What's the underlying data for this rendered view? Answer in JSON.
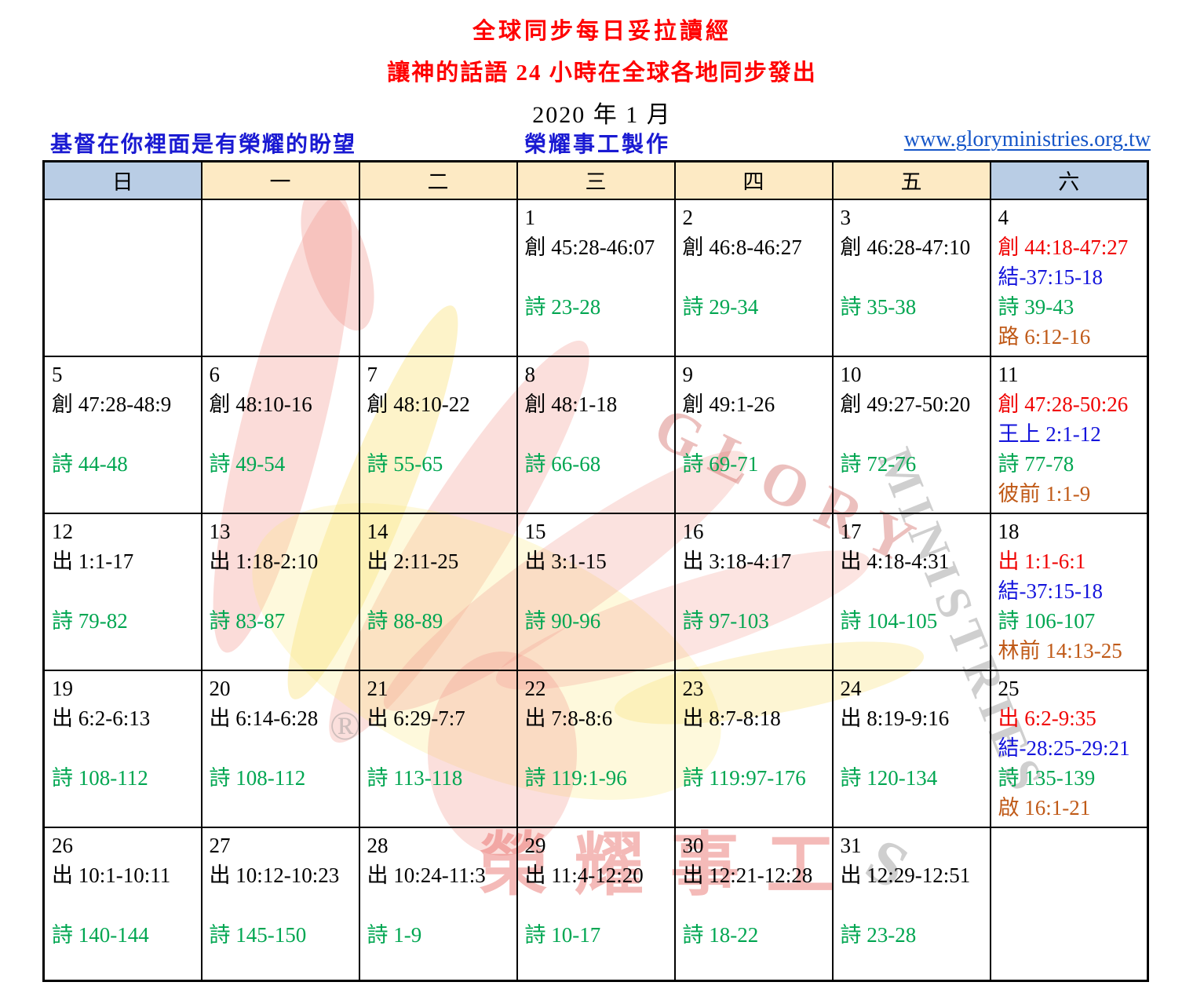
{
  "header": {
    "title": "全球同步每日妥拉讀經",
    "subtitle": "讓神的話語 24 小時在全球各地同步發出",
    "month": "2020 年 1 月",
    "slogan_left": "基督在你裡面是有榮耀的盼望",
    "slogan_center": "榮耀事工製作",
    "website": "www.gloryministries.org.tw"
  },
  "palette": {
    "title_red": "#ff0000",
    "slogan_blue": "#1a1ad2",
    "link_blue": "#1656c8",
    "header_weekend_bg": "#b9cde5",
    "header_weekday_bg": "#fdeac4",
    "grid_black": "#000000",
    "black": "#000000",
    "red": "#f00000",
    "blue": "#1414dc",
    "green": "#00a651",
    "orange": "#c05a18"
  },
  "watermark": {
    "glory": "GLORY",
    "ministries": "MINISTRIES",
    "extra_s": "S",
    "registered": "®",
    "brand_cn": "榮耀事工"
  },
  "weekdays": [
    {
      "label": "日",
      "weekend": true
    },
    {
      "label": "一",
      "weekend": false
    },
    {
      "label": "二",
      "weekend": false
    },
    {
      "label": "三",
      "weekend": false
    },
    {
      "label": "四",
      "weekend": false
    },
    {
      "label": "五",
      "weekend": false
    },
    {
      "label": "六",
      "weekend": true
    }
  ],
  "calendar": {
    "rows": [
      [
        {
          "day": "",
          "readings": []
        },
        {
          "day": "",
          "readings": []
        },
        {
          "day": "",
          "readings": []
        },
        {
          "day": "1",
          "readings": [
            {
              "slot": 1,
              "color": "black",
              "text": "創 45:28-46:07"
            },
            {
              "slot": 3,
              "color": "green",
              "text": "詩  23-28"
            }
          ]
        },
        {
          "day": "2",
          "readings": [
            {
              "slot": 1,
              "color": "black",
              "text": "創 46:8-46:27"
            },
            {
              "slot": 3,
              "color": "green",
              "text": "詩  29-34"
            }
          ]
        },
        {
          "day": "3",
          "readings": [
            {
              "slot": 1,
              "color": "black",
              "text": "創 46:28-47:10"
            },
            {
              "slot": 3,
              "color": "green",
              "text": "詩  35-38"
            }
          ]
        },
        {
          "day": "4",
          "readings": [
            {
              "slot": 1,
              "color": "red",
              "text": "創 44:18-47:27"
            },
            {
              "slot": 2,
              "color": "blue",
              "text": "結-37:15-18"
            },
            {
              "slot": 3,
              "color": "green",
              "text": "詩  39-43"
            },
            {
              "slot": 4,
              "color": "orange",
              "text": "路 6:12-16"
            }
          ]
        }
      ],
      [
        {
          "day": "5",
          "readings": [
            {
              "slot": 1,
              "color": "black",
              "text": "創 47:28-48:9"
            },
            {
              "slot": 3,
              "color": "green",
              "text": "詩  44-48"
            }
          ]
        },
        {
          "day": "6",
          "readings": [
            {
              "slot": 1,
              "color": "black",
              "text": "創 48:10-16"
            },
            {
              "slot": 3,
              "color": "green",
              "text": "詩  49-54"
            }
          ]
        },
        {
          "day": "7",
          "readings": [
            {
              "slot": 1,
              "color": "black",
              "text": "創 48:10-22"
            },
            {
              "slot": 3,
              "color": "green",
              "text": "詩  55-65"
            }
          ]
        },
        {
          "day": "8",
          "readings": [
            {
              "slot": 1,
              "color": "black",
              "text": "創 48:1-18"
            },
            {
              "slot": 3,
              "color": "green",
              "text": "詩  66-68"
            }
          ]
        },
        {
          "day": "9",
          "readings": [
            {
              "slot": 1,
              "color": "black",
              "text": "創 49:1-26"
            },
            {
              "slot": 3,
              "color": "green",
              "text": "詩  69-71"
            }
          ]
        },
        {
          "day": "10",
          "readings": [
            {
              "slot": 1,
              "color": "black",
              "text": "創 49:27-50:20"
            },
            {
              "slot": 3,
              "color": "green",
              "text": "詩  72-76"
            }
          ]
        },
        {
          "day": "11",
          "readings": [
            {
              "slot": 1,
              "color": "red",
              "text": "創 47:28-50:26"
            },
            {
              "slot": 2,
              "color": "blue",
              "text": "王上 2:1-12"
            },
            {
              "slot": 3,
              "color": "green",
              "text": "詩  77-78"
            },
            {
              "slot": 4,
              "color": "orange",
              "text": "彼前 1:1-9"
            }
          ]
        }
      ],
      [
        {
          "day": "12",
          "readings": [
            {
              "slot": 1,
              "color": "black",
              "text": "出 1:1-17"
            },
            {
              "slot": 3,
              "color": "green",
              "text": "詩  79-82"
            }
          ]
        },
        {
          "day": "13",
          "readings": [
            {
              "slot": 1,
              "color": "black",
              "text": "出 1:18-2:10"
            },
            {
              "slot": 3,
              "color": "green",
              "text": "詩  83-87"
            }
          ]
        },
        {
          "day": "14",
          "readings": [
            {
              "slot": 1,
              "color": "black",
              "text": "出 2:11-25"
            },
            {
              "slot": 3,
              "color": "green",
              "text": "詩  88-89"
            }
          ]
        },
        {
          "day": "15",
          "readings": [
            {
              "slot": 1,
              "color": "black",
              "text": "出 3:1-15"
            },
            {
              "slot": 3,
              "color": "green",
              "text": "詩  90-96"
            }
          ]
        },
        {
          "day": "16",
          "readings": [
            {
              "slot": 1,
              "color": "black",
              "text": "出 3:18-4:17"
            },
            {
              "slot": 3,
              "color": "green",
              "text": "詩  97-103"
            }
          ]
        },
        {
          "day": "17",
          "readings": [
            {
              "slot": 1,
              "color": "black",
              "text": "出 4:18-4:31"
            },
            {
              "slot": 3,
              "color": "green",
              "text": "詩  104-105"
            }
          ]
        },
        {
          "day": "18",
          "readings": [
            {
              "slot": 1,
              "color": "red",
              "text": "出 1:1-6:1"
            },
            {
              "slot": 2,
              "color": "blue",
              "text": "結-37:15-18"
            },
            {
              "slot": 3,
              "color": "green",
              "text": "詩  106-107"
            },
            {
              "slot": 4,
              "color": "orange",
              "text": "林前 14:13-25"
            }
          ]
        }
      ],
      [
        {
          "day": "19",
          "readings": [
            {
              "slot": 1,
              "color": "black",
              "text": "出 6:2-6:13"
            },
            {
              "slot": 3,
              "color": "green",
              "text": "詩  108-112"
            }
          ]
        },
        {
          "day": "20",
          "readings": [
            {
              "slot": 1,
              "color": "black",
              "text": "出 6:14-6:28"
            },
            {
              "slot": 3,
              "color": "green",
              "text": "詩  108-112"
            }
          ]
        },
        {
          "day": "21",
          "readings": [
            {
              "slot": 1,
              "color": "black",
              "text": "出 6:29-7:7"
            },
            {
              "slot": 3,
              "color": "green",
              "text": "詩  113-118"
            }
          ]
        },
        {
          "day": "22",
          "readings": [
            {
              "slot": 1,
              "color": "black",
              "text": "出 7:8-8:6"
            },
            {
              "slot": 3,
              "color": "green",
              "text": "詩  119:1-96"
            }
          ]
        },
        {
          "day": "23",
          "readings": [
            {
              "slot": 1,
              "color": "black",
              "text": "出 8:7-8:18"
            },
            {
              "slot": 3,
              "color": "green",
              "text": "詩  119:97-176"
            }
          ]
        },
        {
          "day": "24",
          "readings": [
            {
              "slot": 1,
              "color": "black",
              "text": "出 8:19-9:16"
            },
            {
              "slot": 3,
              "color": "green",
              "text": "詩 120-134"
            }
          ]
        },
        {
          "day": "25",
          "readings": [
            {
              "slot": 1,
              "color": "red",
              "text": "出 6:2-9:35"
            },
            {
              "slot": 2,
              "color": "blue",
              "text": "結-28:25-29:21"
            },
            {
              "slot": 3,
              "color": "green",
              "text": "詩  135-139"
            },
            {
              "slot": 4,
              "color": "orange",
              "text": "啟 16:1-21"
            }
          ]
        }
      ],
      [
        {
          "day": "26",
          "readings": [
            {
              "slot": 1,
              "color": "black",
              "text": "出 10:1-10:11"
            },
            {
              "slot": 3,
              "color": "green",
              "text": "詩  140-144"
            }
          ]
        },
        {
          "day": "27",
          "readings": [
            {
              "slot": 1,
              "color": "black",
              "text": "出 10:12-10:23"
            },
            {
              "slot": 3,
              "color": "green",
              "text": "詩  145-150"
            }
          ]
        },
        {
          "day": "28",
          "readings": [
            {
              "slot": 1,
              "color": "black",
              "text": "出 10:24-11:3"
            },
            {
              "slot": 3,
              "color": "green",
              "text": "詩  1-9"
            }
          ]
        },
        {
          "day": "29",
          "readings": [
            {
              "slot": 1,
              "color": "black",
              "text": "出 11:4-12:20"
            },
            {
              "slot": 3,
              "color": "green",
              "text": "詩  10-17"
            }
          ]
        },
        {
          "day": "30",
          "readings": [
            {
              "slot": 1,
              "color": "black",
              "text": "出 12:21-12:28"
            },
            {
              "slot": 3,
              "color": "green",
              "text": "詩 18-22"
            }
          ]
        },
        {
          "day": "31",
          "readings": [
            {
              "slot": 1,
              "color": "black",
              "text": "出 12:29-12:51"
            },
            {
              "slot": 3,
              "color": "green",
              "text": "詩  23-28"
            }
          ]
        },
        {
          "day": "",
          "readings": []
        }
      ]
    ]
  }
}
